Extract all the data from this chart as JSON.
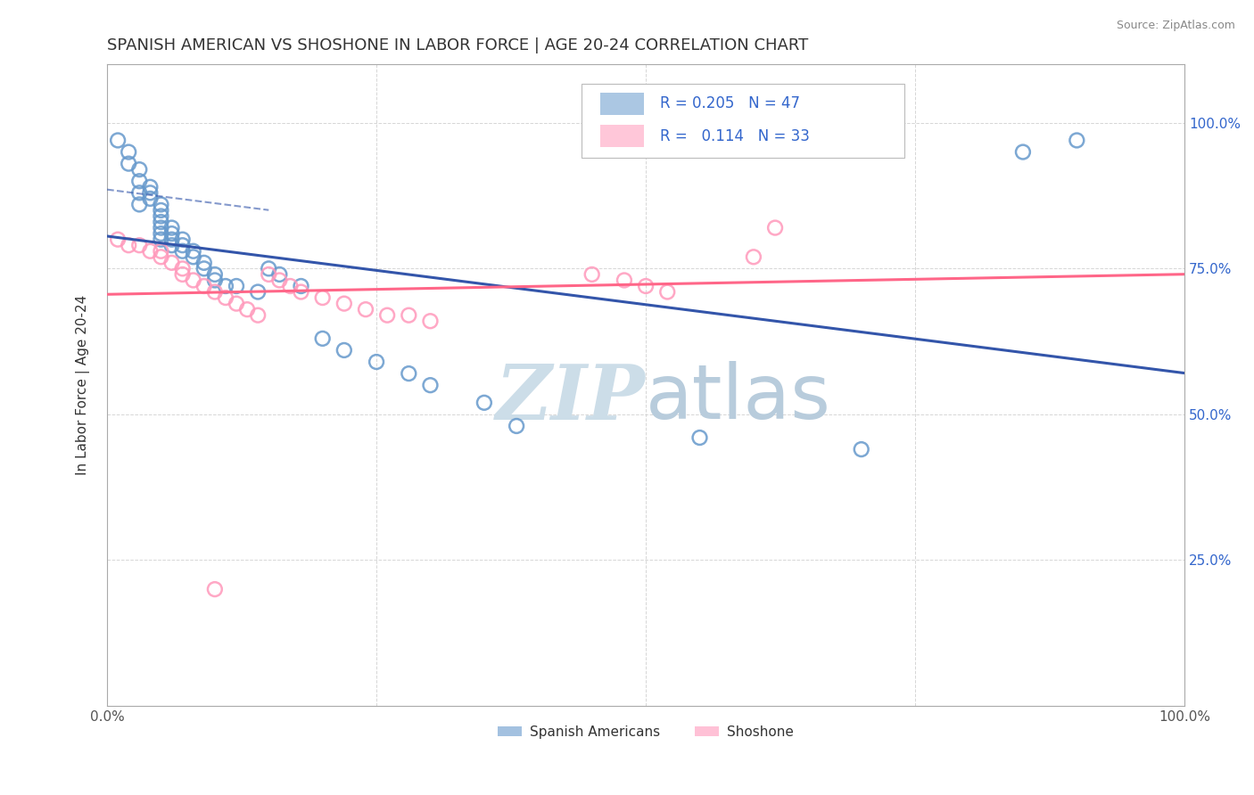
{
  "title": "SPANISH AMERICAN VS SHOSHONE IN LABOR FORCE | AGE 20-24 CORRELATION CHART",
  "source": "Source: ZipAtlas.com",
  "ylabel": "In Labor Force | Age 20-24",
  "xlim": [
    0.0,
    1.0
  ],
  "ylim": [
    0.0,
    1.1
  ],
  "legend_R1": "0.205",
  "legend_N1": "47",
  "legend_R2": "0.114",
  "legend_N2": "33",
  "blue_color": "#6699CC",
  "pink_color": "#FF99BB",
  "blue_line_color": "#3355AA",
  "pink_line_color": "#FF6688",
  "legend_text_color": "#3366CC",
  "title_color": "#333333",
  "watermark_color": "#CCDDE8",
  "grid_color": "#CCCCCC",
  "blue_scatter_x": [
    0.01,
    0.02,
    0.02,
    0.03,
    0.03,
    0.03,
    0.03,
    0.04,
    0.04,
    0.04,
    0.05,
    0.05,
    0.05,
    0.05,
    0.05,
    0.05,
    0.05,
    0.06,
    0.06,
    0.06,
    0.06,
    0.07,
    0.07,
    0.07,
    0.08,
    0.08,
    0.09,
    0.09,
    0.1,
    0.1,
    0.11,
    0.12,
    0.14,
    0.15,
    0.16,
    0.18,
    0.2,
    0.22,
    0.25,
    0.28,
    0.3,
    0.35,
    0.38,
    0.55,
    0.7,
    0.85,
    0.9
  ],
  "blue_scatter_y": [
    0.97,
    0.95,
    0.93,
    0.92,
    0.9,
    0.88,
    0.86,
    0.89,
    0.88,
    0.87,
    0.86,
    0.85,
    0.84,
    0.83,
    0.82,
    0.81,
    0.8,
    0.82,
    0.81,
    0.8,
    0.79,
    0.8,
    0.79,
    0.78,
    0.78,
    0.77,
    0.76,
    0.75,
    0.74,
    0.73,
    0.72,
    0.72,
    0.71,
    0.75,
    0.74,
    0.72,
    0.63,
    0.61,
    0.59,
    0.57,
    0.55,
    0.52,
    0.48,
    0.46,
    0.44,
    0.95,
    0.97
  ],
  "pink_scatter_x": [
    0.01,
    0.02,
    0.03,
    0.04,
    0.05,
    0.05,
    0.06,
    0.07,
    0.07,
    0.08,
    0.09,
    0.1,
    0.11,
    0.12,
    0.13,
    0.14,
    0.15,
    0.16,
    0.17,
    0.18,
    0.2,
    0.22,
    0.24,
    0.26,
    0.28,
    0.3,
    0.45,
    0.48,
    0.5,
    0.52,
    0.6,
    0.62,
    0.1
  ],
  "pink_scatter_y": [
    0.8,
    0.79,
    0.79,
    0.78,
    0.78,
    0.77,
    0.76,
    0.75,
    0.74,
    0.73,
    0.72,
    0.71,
    0.7,
    0.69,
    0.68,
    0.67,
    0.74,
    0.73,
    0.72,
    0.71,
    0.7,
    0.69,
    0.68,
    0.67,
    0.67,
    0.66,
    0.74,
    0.73,
    0.72,
    0.71,
    0.77,
    0.82,
    0.2
  ]
}
